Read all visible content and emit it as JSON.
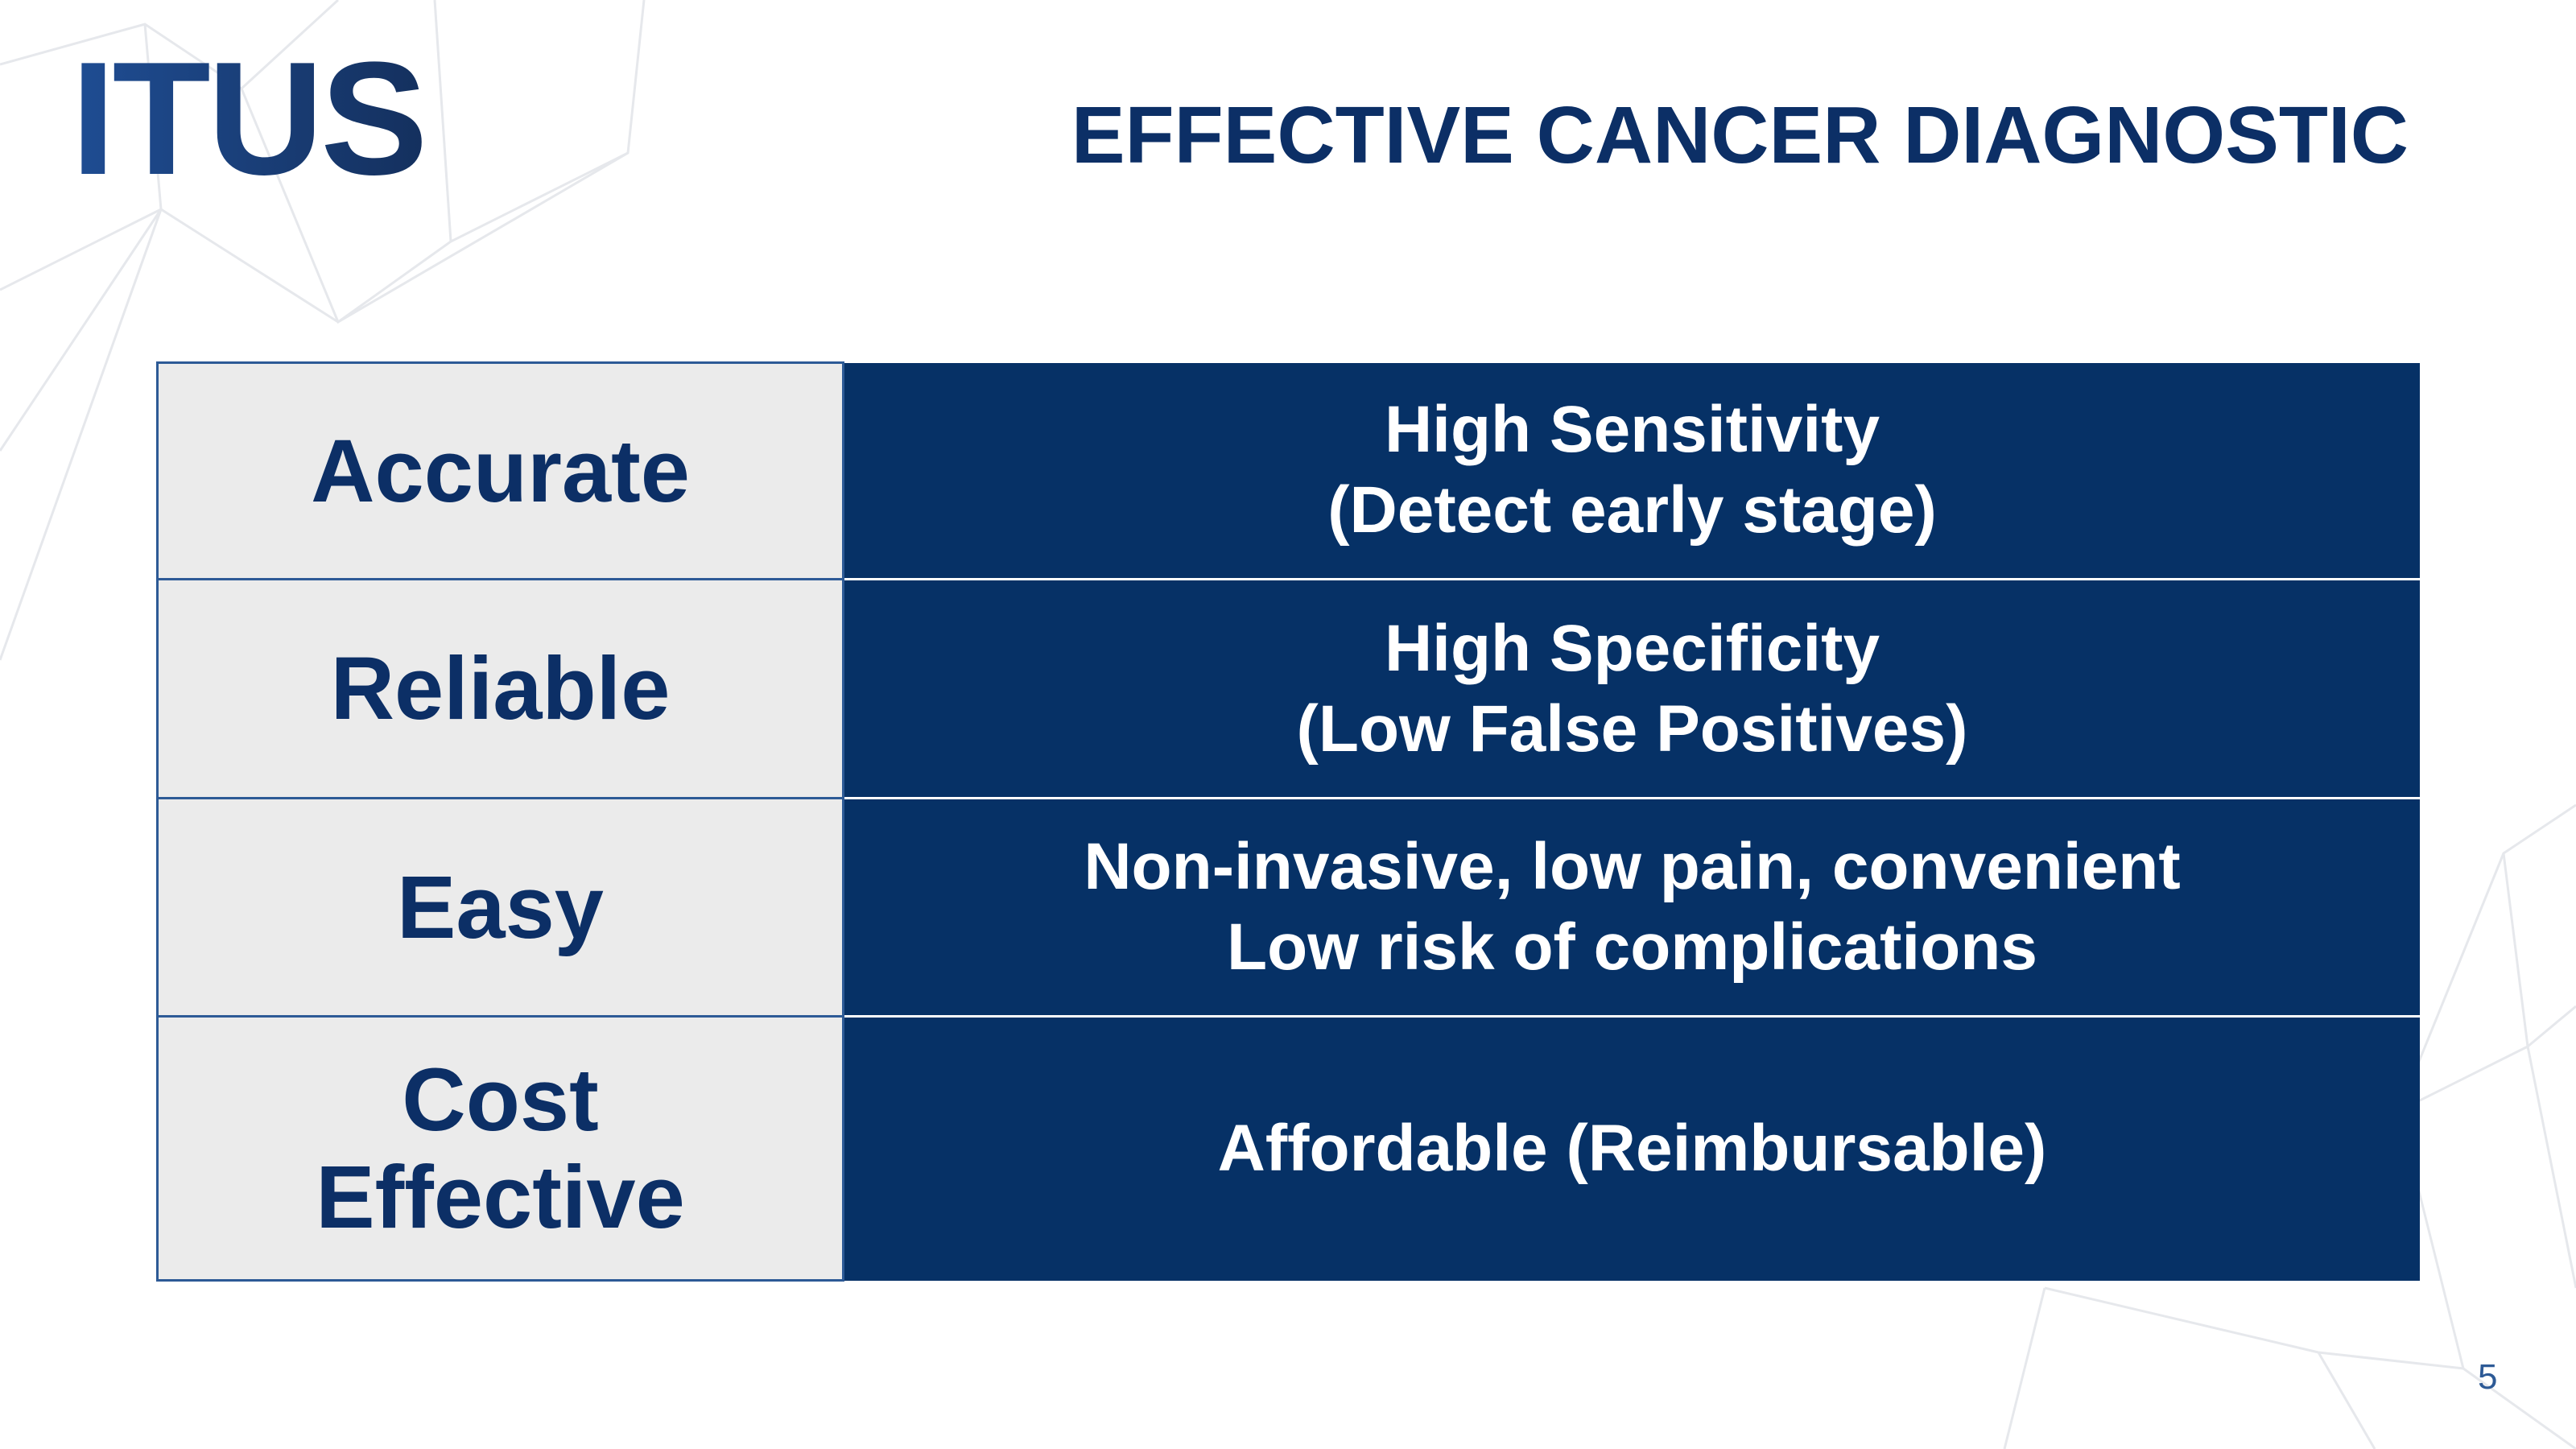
{
  "header": {
    "logo": "ITUS",
    "title": "EFFECTIVE CANCER DIAGNOSTIC"
  },
  "table": {
    "rows": [
      [
        "Accurate",
        [
          "High Sensitivity",
          "(Detect early stage)"
        ]
      ],
      [
        "Reliable",
        [
          "High Specificity",
          "(Low False Positives)"
        ]
      ],
      [
        "Easy",
        [
          "Non-invasive, low pain, convenient",
          "Low risk of complications"
        ]
      ],
      [
        "Cost Effective",
        [
          "Affordable (Reimbursable)"
        ]
      ]
    ]
  },
  "footer": {
    "page_number": "5"
  }
}
